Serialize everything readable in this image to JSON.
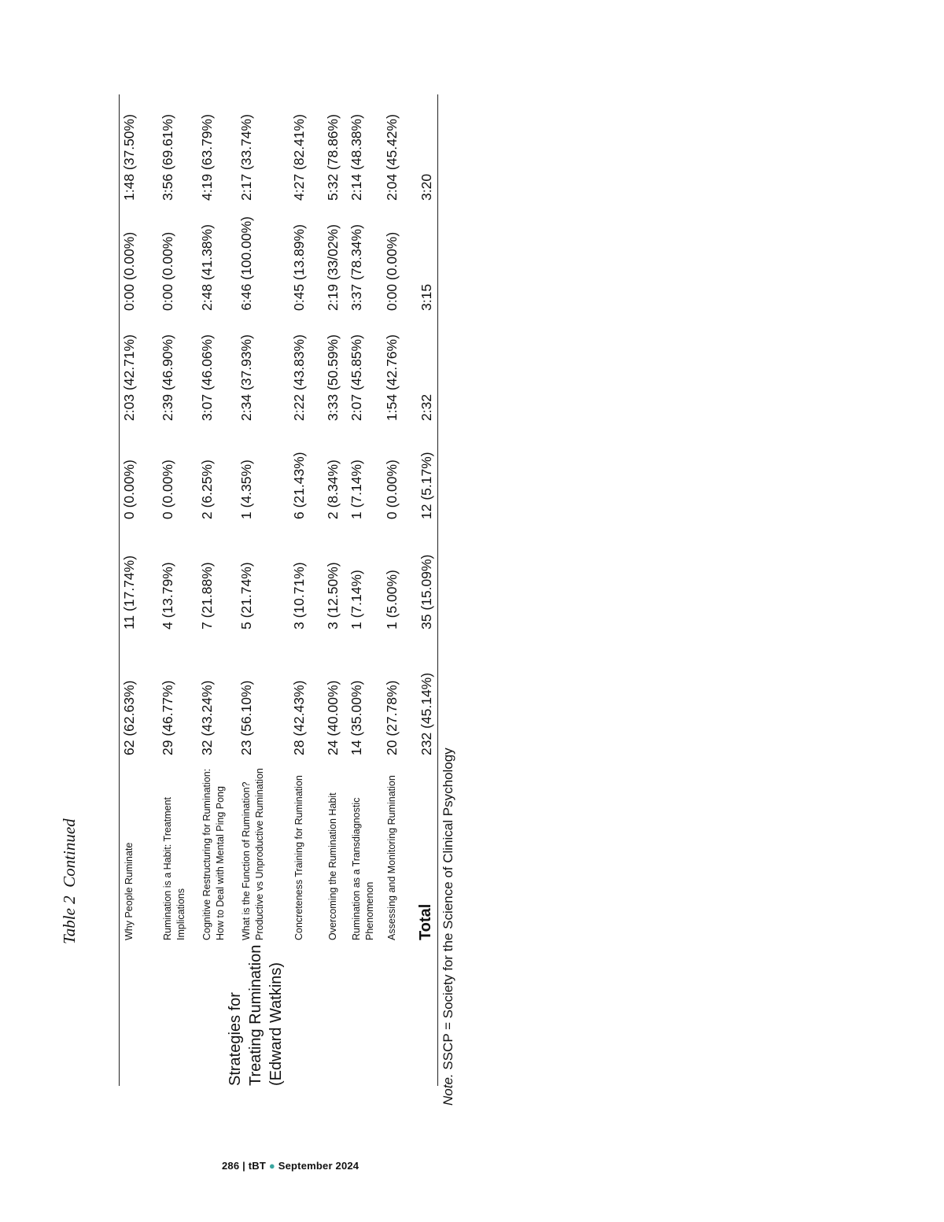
{
  "table_title": {
    "label": "Table 2",
    "suffix": "Continued"
  },
  "group_label": "Strategies for Treating Rumination (Edward Watkins)",
  "rows": [
    {
      "item": "Why People Ruminate",
      "c1": "62 (62.63%)",
      "c2": "11 (17.74%)",
      "c3": "0 (0.00%)",
      "c4": "2:03 (42.71%)",
      "c5": "0:00 (0.00%)",
      "c6": "1:48 (37.50%)"
    },
    {
      "item": "Rumination is a Habit: Treatment Implications",
      "c1": "29 (46.77%)",
      "c2": "4 (13.79%)",
      "c3": "0 (0.00%)",
      "c4": "2:39 (46.90%)",
      "c5": "0:00 (0.00%)",
      "c6": "3:56 (69.61%)"
    },
    {
      "item": "Cognitive Restructuring for Rumination: How to Deal with Mental Ping Pong",
      "c1": "32 (43.24%)",
      "c2": "7 (21.88%)",
      "c3": "2 (6.25%)",
      "c4": "3:07 (46.06%)",
      "c5": "2:48 (41.38%)",
      "c6": "4:19 (63.79%)"
    },
    {
      "item": "What is the Function of Rumination? Productive vs Unproductive Rumination",
      "c1": "23 (56.10%)",
      "c2": "5 (21.74%)",
      "c3": "1 (4.35%)",
      "c4": "2:34 (37.93%)",
      "c5": "6:46 (100.00%)",
      "c6": "2:17 (33.74%)"
    },
    {
      "item": "Concreteness Training for Rumination",
      "c1": "28 (42.43%)",
      "c2": "3 (10.71%)",
      "c3": "6 (21.43%)",
      "c4": "2:22 (43.83%)",
      "c5": "0:45 (13.89%)",
      "c6": "4:27 (82.41%)"
    },
    {
      "item": "Overcoming the Rumination Habit",
      "c1": "24 (40.00%)",
      "c2": "3 (12.50%)",
      "c3": "2 (8.34%)",
      "c4": "3:33 (50.59%)",
      "c5": "2:19 (33/02%)",
      "c6": "5:32 (78.86%)"
    },
    {
      "item": "Rumination as a Transdiagnostic Phenomenon",
      "c1": "14 (35.00%)",
      "c2": "1 (7.14%)",
      "c3": "1 (7.14%)",
      "c4": "2:07 (45.85%)",
      "c5": "3:37 (78.34%)",
      "c6": "2:14 (48.38%)"
    },
    {
      "item": "Assessing and Monitoring Rumination",
      "c1": "20 (27.78%)",
      "c2": "1 (5.00%)",
      "c3": "0 (0.00%)",
      "c4": "1:54 (42.76%)",
      "c5": "0:00 (0.00%)",
      "c6": "2:04 (45.42%)"
    }
  ],
  "total": {
    "item": "Total",
    "c1": "232 (45.14%)",
    "c2": "35 (15.09%)",
    "c3": "12 (5.17%)",
    "c4": "2:32",
    "c5": "3:15",
    "c6": "3:20"
  },
  "note": {
    "prefix": "Note.",
    "text": " SSCP = Society for the Science of Clinical Psychology"
  },
  "footer": {
    "page": "286",
    "sep": " | ",
    "journal": "tBT",
    "dot": " ● ",
    "issue": "September 2024"
  }
}
